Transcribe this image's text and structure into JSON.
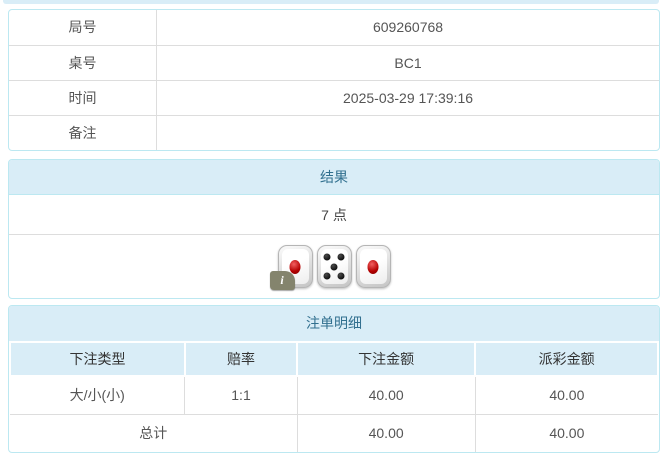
{
  "colors": {
    "panel_header_bg": "#d9edf7",
    "panel_header_text": "#31708f",
    "panel_border": "#bce8f1",
    "row_divider": "#dddddd",
    "odds_red": "#e05353",
    "body_text": "#555555"
  },
  "round_info": {
    "rows": [
      {
        "label": "局号",
        "value": "609260768"
      },
      {
        "label": "桌号",
        "value": "BC1"
      },
      {
        "label": "时间",
        "value": "2025-03-29 17:39:16"
      },
      {
        "label": "备注",
        "value": ""
      }
    ]
  },
  "result_panel": {
    "title": "结果",
    "points": "7 点",
    "dice": [
      1,
      5,
      1
    ],
    "info_badge": "i"
  },
  "bets_panel": {
    "title": "注单明细",
    "columns": [
      "下注类型",
      "赔率",
      "下注金额",
      "派彩金额"
    ],
    "rows": [
      {
        "bet_type": "大/小(小)",
        "odds": "1:1",
        "bet_amount": "40.00",
        "payout_amount": "40.00"
      }
    ],
    "total": {
      "label": "总计",
      "bet_amount": "40.00",
      "payout_amount": "40.00"
    }
  }
}
